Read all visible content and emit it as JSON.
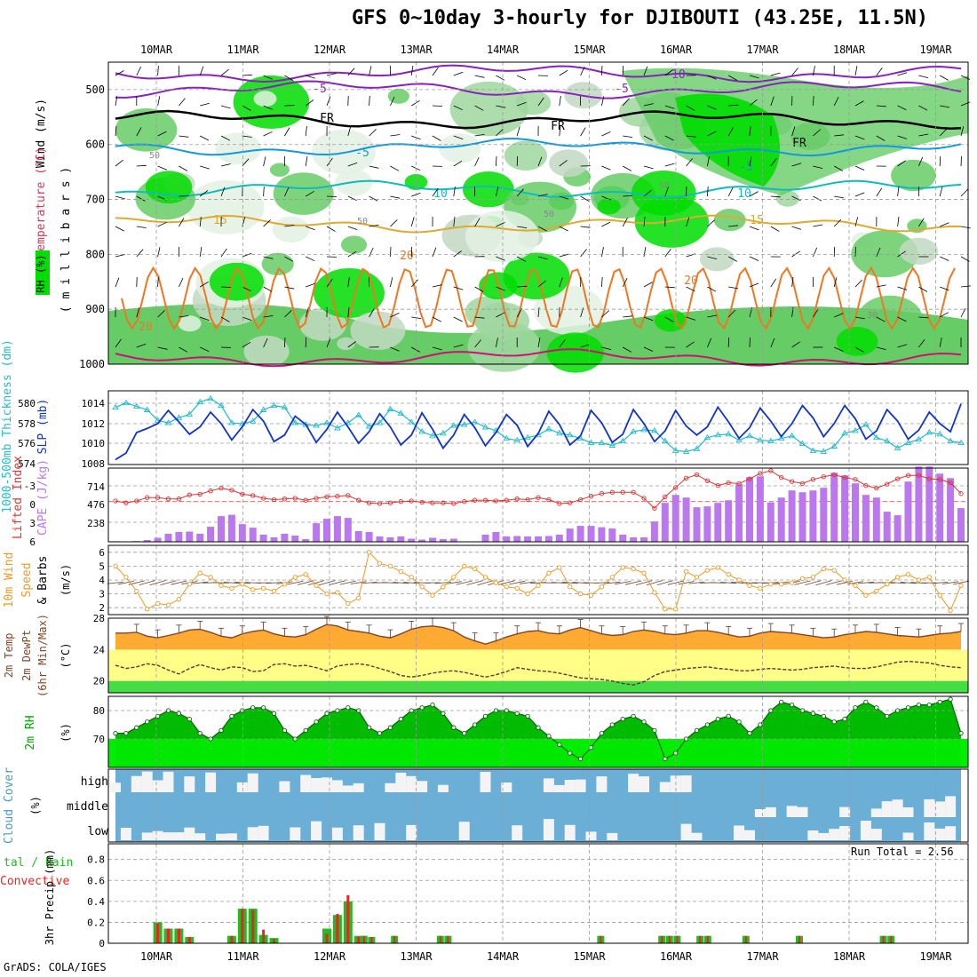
{
  "title": "GFS 0~10day 3-hourly for DJIBOUTI (43.25E, 11.5N)",
  "footer": "GrADS: COLA/IGES",
  "run_total": "Run Total = 2.56",
  "colors": {
    "rh_dark": "#00dd00",
    "rh_mid": "#66cc66",
    "rh_light": "#9fd79f",
    "rh_grey": "#c2d8c2",
    "rh_faint": "#e3f1e3",
    "slp": "#1133cc",
    "thickness": "#22bbcc",
    "cape": "#bb77ee",
    "lifted_index": "#dd3333",
    "wind10m": "#ee9922",
    "temp": "#ffaa33",
    "temp_band": "#ffff88",
    "temp_low": "#44dd44",
    "dewpt": "#663333",
    "rh2m_light": "#00ee00",
    "rh2m_dark": "#00bb00",
    "cloud_blue": "#6baed6",
    "cloud_white": "#f4f4f4",
    "precip_total": "#22bb22",
    "precip_conv": "#ee2222",
    "isotherm_neg": "#8822bb",
    "isotherm_freeze": "#000000",
    "isotherm_5": "#1199dd",
    "isotherm_10": "#11bbbb",
    "isotherm_15": "#ddaa33",
    "isotherm_20": "#ee7722",
    "isotherm_25": "#cc1177"
  },
  "chart_data": {
    "x": {
      "date_labels": [
        "10MAR",
        "11MAR",
        "12MAR",
        "13MAR",
        "14MAR",
        "15MAR",
        "16MAR",
        "17MAR",
        "18MAR",
        "19MAR"
      ],
      "steps": 81,
      "step_hours": 3
    },
    "panels": [
      {
        "id": "upper_air",
        "type": "heatmap",
        "ylabel_parts": [
          "Wind (m/s)",
          "Temperature (°C)",
          "RH (%)",
          "( m i l l i b a r s )"
        ],
        "y_ticks": [
          500,
          600,
          700,
          800,
          900,
          1000
        ],
        "y_range": [
          450,
          1000
        ],
        "rh_levels": [
          40,
          50,
          60,
          70,
          80,
          90,
          95
        ],
        "isotherm_labels": [
          "-10",
          "-5",
          "-5",
          "FR",
          "FR",
          "FR",
          "-5",
          "-5",
          "10",
          "10",
          "15",
          "15",
          "20",
          "20",
          "20",
          "50",
          "50",
          "50",
          "50",
          "30"
        ]
      },
      {
        "id": "slp_thickness",
        "type": "line",
        "ylabel_left": "1000-500mb Thickness (dm)",
        "ylabel_right": "SLP (mb)",
        "left_ticks": [
          "580",
          "578",
          "576",
          "574"
        ],
        "right_ticks": [
          "1014",
          "1012",
          "1010",
          "1008"
        ],
        "thickness_range": [
          573.5,
          582
        ],
        "slp_range": [
          1007,
          1016
        ],
        "slp": [
          1007.6,
          1008.4,
          1010.9,
          1011.4,
          1012.0,
          1013.6,
          1012.2,
          1010.7,
          1011.6,
          1013.4,
          1012.0,
          1010.0,
          1011.6,
          1013.7,
          1012.3,
          1009.8,
          1010.6,
          1012.9,
          1011.9,
          1009.7,
          1011.3,
          1013.4,
          1011.6,
          1009.6,
          1011.0,
          1013.2,
          1011.6,
          1009.4,
          1010.6,
          1013.3,
          1011.3,
          1009.0,
          1010.6,
          1013.1,
          1011.5,
          1009.3,
          1010.9,
          1013.1,
          1011.8,
          1009.2,
          1010.8,
          1013.5,
          1011.9,
          1009.4,
          1010.5,
          1013.6,
          1012.1,
          1009.7,
          1010.7,
          1013.7,
          1012.0,
          1009.8,
          1011.1,
          1013.6,
          1011.7,
          1010.6,
          1011.6,
          1014.0,
          1012.2,
          1010.2,
          1011.5,
          1013.9,
          1012.3,
          1010.4,
          1012.0,
          1014.2,
          1012.7,
          1010.4,
          1012.0,
          1014.2,
          1012.6,
          1010.1,
          1011.1,
          1013.7,
          1012.3,
          1010.1,
          1011.2,
          1013.4,
          1012.0,
          1011.0,
          1014.4
        ],
        "thickness": [
          580.1,
          580.6,
          580.2,
          579.8,
          578.6,
          578.3,
          578.9,
          579.3,
          580.7,
          581.1,
          580.3,
          578.3,
          578.2,
          578.5,
          579.8,
          580.3,
          580.1,
          578.3,
          578.1,
          578.0,
          578.3,
          577.7,
          578.3,
          579.2,
          577.9,
          578.3,
          579.9,
          579.4,
          578.4,
          577.3,
          576.8,
          577.1,
          578.0,
          578.1,
          578.4,
          577.8,
          577.4,
          576.5,
          576.3,
          576.6,
          576.9,
          577.6,
          577.1,
          576.9,
          576.5,
          576.0,
          576.0,
          575.7,
          576.2,
          577.3,
          577.5,
          577.4,
          576.2,
          575.1,
          575.0,
          575.3,
          576.6,
          576.9,
          577.0,
          576.3,
          576.8,
          576.3,
          576.2,
          576.5,
          576.8,
          575.9,
          575.1,
          575.0,
          575.6,
          577.1,
          577.4,
          578.1,
          576.6,
          576.2,
          575.4,
          576.0,
          576.4,
          577.2,
          577.0,
          576.2,
          576.0
        ]
      },
      {
        "id": "cape_li",
        "type": "bar",
        "ylabel_left": "Lifted Index",
        "ylabel_right": "CAPE (J/kg)",
        "left_ticks": [
          "-3",
          "0",
          "3",
          "6"
        ],
        "right_ticks": [
          "714",
          "476",
          "238"
        ],
        "cape_range": [
          0,
          833
        ],
        "li_range": [
          -5,
          6
        ],
        "cape": [
          6,
          5,
          8,
          20,
          45,
          90,
          110,
          115,
          90,
          170,
          290,
          305,
          200,
          160,
          80,
          50,
          90,
          70,
          30,
          210,
          260,
          290,
          270,
          120,
          110,
          60,
          50,
          60,
          35,
          25,
          45,
          30,
          35,
          5,
          5,
          80,
          110,
          60,
          65,
          60,
          60,
          65,
          80,
          150,
          180,
          180,
          165,
          150,
          80,
          50,
          50,
          230,
          440,
          530,
          500,
          390,
          400,
          440,
          470,
          650,
          730,
          740,
          445,
          500,
          580,
          560,
          580,
          610,
          780,
          750,
          660,
          530,
          500,
          340,
          300,
          680,
          850,
          850,
          770,
          720,
          380
        ],
        "lifted_index": [
          -0.1,
          0.2,
          -0.1,
          -0.6,
          -0.6,
          -0.4,
          -0.4,
          -1.0,
          -1.1,
          -1.6,
          -2.0,
          -1.7,
          -1.1,
          -0.9,
          -0.5,
          -0.3,
          -0.4,
          -0.5,
          -0.2,
          -0.5,
          -0.7,
          -0.8,
          -0.9,
          -0.2,
          0.2,
          0.3,
          0.2,
          0.0,
          -0.1,
          0.1,
          0.2,
          0.2,
          0.3,
          0.0,
          -0.2,
          -0.2,
          -0.1,
          -0.2,
          -0.4,
          -0.3,
          -0.6,
          -0.3,
          0.3,
          0.2,
          -0.3,
          -0.8,
          -1.2,
          -1.4,
          -1.4,
          -1.4,
          -0.5,
          1.0,
          -0.7,
          -2.1,
          -3.5,
          -4.0,
          -3.1,
          -2.4,
          -2.8,
          -2.7,
          -3.4,
          -4.2,
          -4.6,
          -3.6,
          -3.0,
          -2.7,
          -3.3,
          -3.7,
          -4.0,
          -3.6,
          -3.3,
          -2.4,
          -2.0,
          -2.6,
          -3.4,
          -3.9,
          -3.9,
          -3.4,
          -3.3,
          -2.8,
          -1.2
        ]
      },
      {
        "id": "wind10m",
        "type": "line",
        "ylabel": "10m Wind Speed & Barbs",
        "ylabel_unit": "(m/s)",
        "ticks": [
          "6",
          "5",
          "4",
          "3",
          "2"
        ],
        "y_range": [
          1.5,
          6.5
        ],
        "speed": [
          5.0,
          4.2,
          3.2,
          1.9,
          2.3,
          2.2,
          2.6,
          3.7,
          4.5,
          4.2,
          3.6,
          3.4,
          3.7,
          3.3,
          3.4,
          3.2,
          3.7,
          4.2,
          4.4,
          3.6,
          3.0,
          3.1,
          2.3,
          2.7,
          6.0,
          5.2,
          5.0,
          4.6,
          4.2,
          3.5,
          2.9,
          3.5,
          4.2,
          5.0,
          4.8,
          4.2,
          3.8,
          3.5,
          3.4,
          3.0,
          3.6,
          4.5,
          4.9,
          3.5,
          3.0,
          2.9,
          3.5,
          4.2,
          4.9,
          4.8,
          4.5,
          3.1,
          1.9,
          1.9,
          4.6,
          4.2,
          4.7,
          4.9,
          4.4,
          4.0,
          3.6,
          3.4,
          3.7,
          3.7,
          3.8,
          4.1,
          4.2,
          4.8,
          4.7,
          4.0,
          3.6,
          2.9,
          3.2,
          3.7,
          4.2,
          4.4,
          4.0,
          4.2,
          2.9,
          1.8,
          3.6
        ]
      },
      {
        "id": "temp2m",
        "type": "area",
        "ylabel_parts": [
          "2m Temp",
          "2m DewPt",
          "(6hr Min/Max)"
        ],
        "ylabel_unit": "(°C)",
        "ticks": [
          "28",
          "24",
          "20"
        ],
        "y_range": [
          18.5,
          28.0
        ],
        "temp": [
          26.1,
          26.1,
          26.2,
          25.7,
          25.5,
          25.8,
          26.1,
          26.5,
          26.6,
          26.2,
          25.7,
          25.5,
          26.0,
          26.3,
          26.5,
          26.0,
          25.7,
          25.6,
          25.9,
          26.6,
          27.2,
          27.0,
          26.5,
          26.3,
          26.1,
          25.7,
          25.5,
          26.0,
          26.6,
          26.9,
          27.0,
          26.8,
          26.4,
          25.6,
          25.1,
          24.7,
          25.1,
          25.6,
          26.0,
          26.3,
          26.4,
          26.1,
          26.0,
          26.5,
          26.8,
          26.4,
          26.0,
          25.8,
          25.9,
          26.3,
          26.5,
          26.3,
          26.0,
          25.9,
          26.1,
          26.4,
          26.4,
          26.2,
          25.9,
          25.6,
          25.7,
          26.1,
          26.3,
          26.2,
          26.1,
          25.9,
          25.7,
          25.5,
          25.6,
          25.9,
          26.1,
          26.3,
          26.2,
          26.0,
          25.8,
          25.7,
          25.6,
          25.8,
          26.0,
          26.1,
          26.3
        ],
        "dewpt": [
          22.0,
          21.6,
          21.8,
          22.2,
          22.0,
          21.4,
          20.9,
          21.6,
          22.1,
          21.7,
          21.4,
          21.8,
          21.7,
          21.2,
          21.3,
          22.1,
          22.2,
          21.9,
          22.0,
          21.7,
          21.3,
          21.9,
          22.1,
          22.2,
          22.0,
          21.6,
          21.2,
          20.7,
          20.5,
          20.7,
          21.0,
          21.2,
          21.3,
          21.1,
          20.8,
          20.5,
          20.8,
          21.2,
          21.7,
          21.5,
          21.3,
          21.2,
          21.0,
          20.7,
          20.4,
          20.3,
          20.2,
          20.0,
          19.7,
          19.5,
          19.9,
          20.7,
          21.2,
          21.4,
          21.6,
          21.7,
          21.8,
          21.6,
          21.5,
          21.3,
          21.3,
          21.5,
          21.6,
          21.5,
          21.4,
          21.5,
          21.7,
          21.8,
          21.9,
          21.7,
          21.6,
          21.6,
          21.8,
          22.1,
          22.4,
          22.5,
          22.4,
          22.3,
          22.0,
          21.8,
          21.7
        ]
      },
      {
        "id": "rh2m",
        "type": "area",
        "ylabel": "2m RH",
        "ylabel_unit": "(%)",
        "ticks": [
          "80",
          "70"
        ],
        "y_range": [
          60,
          85
        ],
        "rh": [
          72,
          72,
          74,
          76,
          78,
          80,
          79,
          77,
          72,
          70,
          73,
          78,
          80,
          81,
          81,
          79,
          73,
          70,
          73,
          76,
          79,
          80,
          81,
          80,
          74,
          72,
          74,
          77,
          80,
          81,
          82,
          79,
          74,
          72,
          75,
          78,
          80,
          80,
          79,
          78,
          74,
          71,
          68,
          65,
          63,
          67,
          72,
          75,
          77,
          78,
          76,
          73,
          63,
          65,
          70,
          73,
          75,
          77,
          78,
          76,
          72,
          75,
          80,
          83,
          82,
          80,
          79,
          78,
          76,
          77,
          81,
          83,
          81,
          78,
          80,
          81,
          82,
          82,
          83,
          84,
          72
        ]
      },
      {
        "id": "cloud_cover",
        "type": "heatmap",
        "ylabel": "Cloud Cover",
        "ylabel_unit": "(%)",
        "row_labels": [
          "high",
          "middle",
          "low"
        ]
      },
      {
        "id": "precip",
        "type": "bar",
        "ylabel_parts": [
          "Total / Rain",
          "Convective"
        ],
        "ylabel_unit": "3hr Precip (mm)",
        "ticks": [
          "0.8",
          "0.6",
          "0.4",
          "0.2",
          "0"
        ],
        "y_range": [
          0,
          0.95
        ],
        "total": [
          0,
          0,
          0,
          0,
          0.2,
          0.14,
          0.14,
          0.06,
          0,
          0,
          0,
          0.07,
          0.33,
          0.33,
          0.08,
          0.05,
          0,
          0,
          0,
          0,
          0.14,
          0.27,
          0.4,
          0.07,
          0,
          0,
          0,
          0,
          0,
          0,
          0,
          0,
          0,
          0,
          0,
          0,
          0,
          0,
          0,
          0,
          0,
          0,
          0,
          0,
          0,
          0,
          0,
          0,
          0,
          0,
          0,
          0,
          0,
          0,
          0,
          0,
          0,
          0,
          0,
          0,
          0,
          0,
          0,
          0,
          0,
          0,
          0,
          0,
          0,
          0,
          0,
          0,
          0,
          0,
          0,
          0,
          0,
          0,
          0,
          0,
          0
        ],
        "convective": [
          0,
          0,
          0,
          0,
          0.19,
          0.14,
          0.14,
          0.06,
          0,
          0,
          0,
          0.07,
          0.33,
          0.32,
          0.13,
          0.04,
          0,
          0,
          0,
          0,
          0.09,
          0.28,
          0.46,
          0.06,
          0,
          0,
          0,
          0,
          0,
          0,
          0,
          0,
          0,
          0,
          0,
          0,
          0,
          0,
          0,
          0,
          0,
          0,
          0,
          0,
          0,
          0,
          0,
          0,
          0,
          0,
          0,
          0,
          0,
          0,
          0,
          0,
          0,
          0,
          0,
          0,
          0,
          0,
          0,
          0,
          0,
          0,
          0,
          0,
          0,
          0,
          0,
          0,
          0,
          0,
          0,
          0,
          0,
          0,
          0,
          0,
          0
        ],
        "extra_small": [
          [
            33,
            0.07
          ],
          [
            34,
            0.06
          ],
          [
            37,
            0.07
          ],
          [
            43,
            0.07
          ],
          [
            44,
            0.07
          ],
          [
            64,
            0.07
          ],
          [
            72,
            0.07
          ],
          [
            73,
            0.07
          ],
          [
            74,
            0.07
          ],
          [
            83,
            0.07
          ],
          [
            90,
            0.07
          ],
          [
            101,
            0.07
          ],
          [
            102,
            0.07
          ],
          [
            77,
            0.07
          ],
          [
            78,
            0.07
          ]
        ]
      }
    ]
  }
}
